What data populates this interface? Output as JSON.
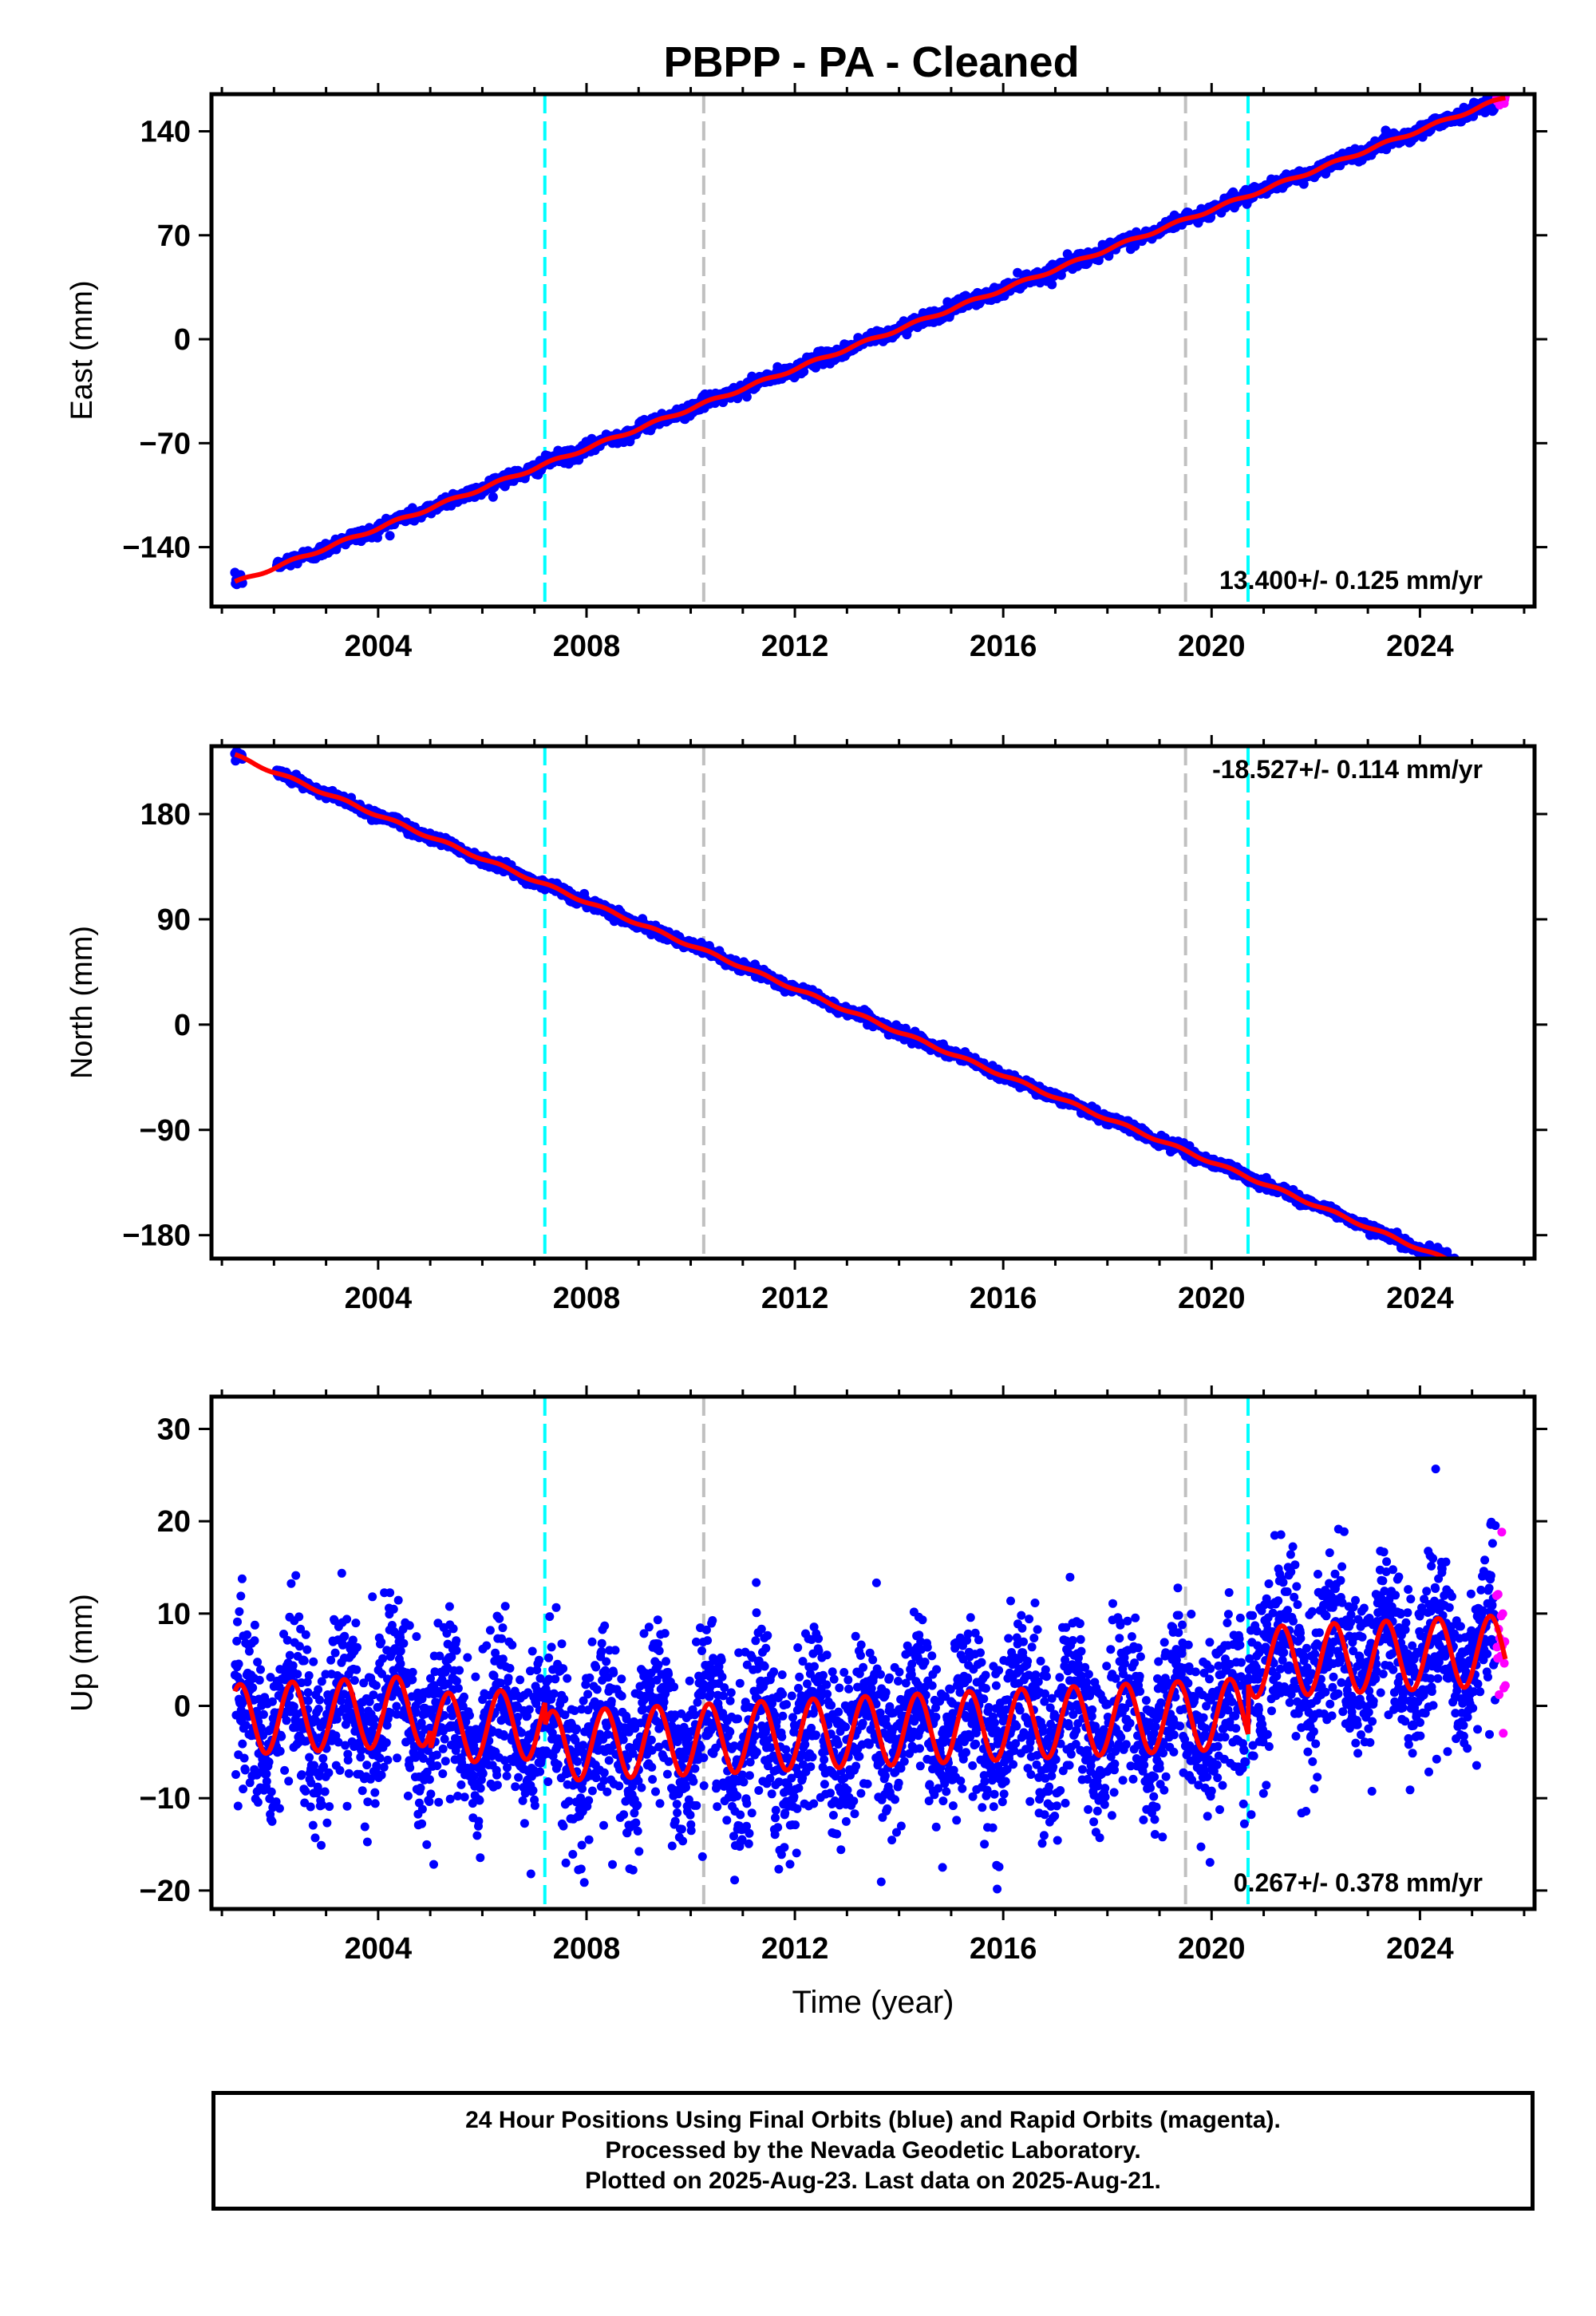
{
  "title": "PBPP  - PA - Cleaned",
  "colors": {
    "final_orbits": "#0000ff",
    "rapid_orbits": "#ff00ff",
    "model_fit": "#ff0000",
    "dashed_cyan": "#00ffff",
    "dashed_gray": "#c0c0c0"
  },
  "footer": {
    "line1": "24 Hour Positions Using Final Orbits (blue) and Rapid Orbits (magenta).",
    "line2": "Processed by the Nevada Geodetic Laboratory.",
    "line3": "Plotted on 2025-Aug-23. Last data on 2025-Aug-21."
  },
  "chart_data": [
    {
      "type": "scatter",
      "panel": "east",
      "ylabel": "East (mm)",
      "xlabel": "",
      "xlim": [
        2000.8,
        2026.2
      ],
      "ylim": [
        -180,
        165
      ],
      "xticks": [
        2004,
        2008,
        2012,
        2016,
        2020,
        2024
      ],
      "yticks": [
        -140,
        -70,
        0,
        70,
        140
      ],
      "rate_label": "13.400+/- 0.125 mm/yr",
      "rate_position": "bottom-right",
      "trend": {
        "t0": 2001.25,
        "y0": -164,
        "rate": 13.4
      },
      "scatter_noise": 2.2,
      "seasonal_amplitude": 1.0,
      "vlines_cyan": [
        2007.2,
        2020.7
      ],
      "vlines_gray": [
        2010.25,
        2019.5
      ]
    },
    {
      "type": "scatter",
      "panel": "north",
      "ylabel": "North (mm)",
      "xlabel": "",
      "xlim": [
        2000.8,
        2026.2
      ],
      "ylim": [
        -200,
        238
      ],
      "xticks": [
        2004,
        2008,
        2012,
        2016,
        2020,
        2024
      ],
      "yticks": [
        -180,
        -90,
        0,
        90,
        180
      ],
      "rate_label": "-18.527+/- 0.114 mm/yr",
      "rate_position": "top-right",
      "trend": {
        "t0": 2001.25,
        "y0": 230,
        "rate": -18.527
      },
      "scatter_noise": 2.2,
      "seasonal_amplitude": 1.2,
      "vlines_cyan": [
        2007.2,
        2020.7
      ],
      "vlines_gray": [
        2010.25,
        2019.5
      ]
    },
    {
      "type": "scatter",
      "panel": "up",
      "ylabel": "Up (mm)",
      "xlabel": "Time (year)",
      "xlim": [
        2000.8,
        2026.2
      ],
      "ylim": [
        -22,
        33.5
      ],
      "xticks": [
        2004,
        2008,
        2012,
        2016,
        2020,
        2024
      ],
      "yticks": [
        -20,
        -10,
        0,
        10,
        20,
        30
      ],
      "rate_label": "0.267+/- 0.378 mm/yr",
      "rate_position": "bottom-right",
      "trend": {
        "t0": 2001.25,
        "y0": -1.5,
        "rate": 0.267
      },
      "scatter_noise": 4.5,
      "seasonal_amplitude": 3.8,
      "offsets": [
        {
          "year": 2005.0,
          "delta": -2.0
        },
        {
          "year": 2007.2,
          "delta": -2.5
        },
        {
          "year": 2020.7,
          "delta": 5.5
        }
      ],
      "vlines_cyan": [
        2007.2,
        2020.7
      ],
      "vlines_gray": [
        2010.25,
        2019.5
      ]
    }
  ]
}
